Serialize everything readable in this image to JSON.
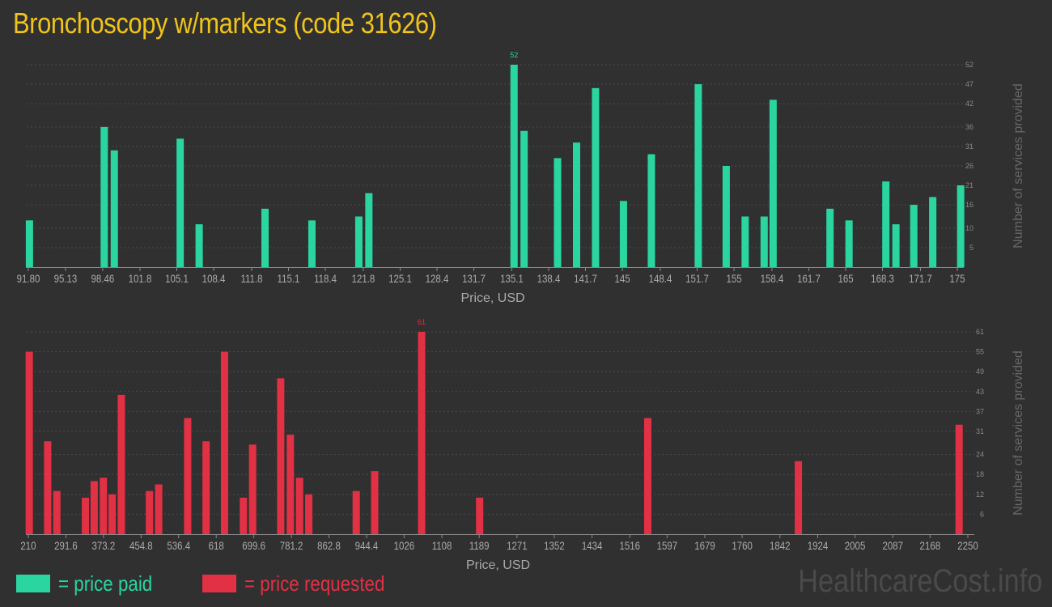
{
  "title": "Bronchoscopy w/markers (code 31626)",
  "colors": {
    "paid": "#2ad5a0",
    "requested": "#e23045",
    "title": "#f0c419",
    "axis": "#999999",
    "grid": "#4a4a4a",
    "text": "#aaaaaa"
  },
  "legend": {
    "paid": "= price paid",
    "requested": "= price requested"
  },
  "watermark": "HealthcareCost.info",
  "chart_data": [
    {
      "type": "bar",
      "series_name": "price paid",
      "xlabel": "Price, USD",
      "ylabel": "Number of services provided",
      "xlim": [
        91.8,
        175
      ],
      "ylim": [
        0,
        52
      ],
      "xticks": [
        "91.80",
        "95.13",
        "98.46",
        "101.8",
        "105.1",
        "108.4",
        "111.8",
        "115.1",
        "118.4",
        "121.8",
        "125.1",
        "128.4",
        "131.7",
        "135.1",
        "138.4",
        "141.7",
        "145",
        "148.4",
        "151.7",
        "155",
        "158.4",
        "161.7",
        "165",
        "168.3",
        "171.7",
        "175"
      ],
      "xtick_values": [
        91.8,
        95.13,
        98.46,
        101.8,
        105.1,
        108.4,
        111.8,
        115.1,
        118.4,
        121.8,
        125.1,
        128.4,
        131.7,
        135.1,
        138.4,
        141.7,
        145,
        148.4,
        151.7,
        155,
        158.4,
        161.7,
        165,
        168.3,
        171.7,
        175
      ],
      "yticks": [
        5,
        10,
        16,
        21,
        26,
        31,
        36,
        42,
        47,
        52
      ],
      "max_label": "52",
      "bars": [
        {
          "x": 91.9,
          "y": 12
        },
        {
          "x": 98.6,
          "y": 36
        },
        {
          "x": 99.5,
          "y": 30
        },
        {
          "x": 105.4,
          "y": 33
        },
        {
          "x": 107.1,
          "y": 11
        },
        {
          "x": 113.0,
          "y": 15
        },
        {
          "x": 117.2,
          "y": 12
        },
        {
          "x": 121.4,
          "y": 13
        },
        {
          "x": 122.3,
          "y": 19
        },
        {
          "x": 135.3,
          "y": 52
        },
        {
          "x": 136.2,
          "y": 35
        },
        {
          "x": 139.2,
          "y": 28
        },
        {
          "x": 140.9,
          "y": 32
        },
        {
          "x": 142.6,
          "y": 46
        },
        {
          "x": 145.1,
          "y": 17
        },
        {
          "x": 147.6,
          "y": 29
        },
        {
          "x": 151.8,
          "y": 47
        },
        {
          "x": 154.3,
          "y": 26
        },
        {
          "x": 156.0,
          "y": 13
        },
        {
          "x": 157.7,
          "y": 13
        },
        {
          "x": 158.5,
          "y": 43
        },
        {
          "x": 163.6,
          "y": 15
        },
        {
          "x": 165.3,
          "y": 12
        },
        {
          "x": 168.6,
          "y": 22
        },
        {
          "x": 169.5,
          "y": 11
        },
        {
          "x": 171.1,
          "y": 16
        },
        {
          "x": 172.8,
          "y": 18
        },
        {
          "x": 175.3,
          "y": 21
        }
      ]
    },
    {
      "type": "bar",
      "series_name": "price requested",
      "xlabel": "Price, USD",
      "ylabel": "Number of services provided",
      "xlim": [
        210,
        2250
      ],
      "ylim": [
        0,
        61
      ],
      "xticks": [
        "210",
        "291.6",
        "373.2",
        "454.8",
        "536.4",
        "618",
        "699.6",
        "781.2",
        "862.8",
        "944.4",
        "1026",
        "1108",
        "1189",
        "1271",
        "1352",
        "1434",
        "1516",
        "1597",
        "1679",
        "1760",
        "1842",
        "1924",
        "2005",
        "2087",
        "2168",
        "2250"
      ],
      "xtick_values": [
        210,
        291.6,
        373.2,
        454.8,
        536.4,
        618,
        699.6,
        781.2,
        862.8,
        944.4,
        1026,
        1108,
        1189,
        1271,
        1352,
        1434,
        1516,
        1597,
        1679,
        1760,
        1842,
        1924,
        2005,
        2087,
        2168,
        2250
      ],
      "yticks": [
        6,
        12,
        18,
        24,
        31,
        37,
        43,
        49,
        55,
        61
      ],
      "max_label": "61",
      "bars": [
        {
          "x": 212,
          "y": 55
        },
        {
          "x": 252,
          "y": 28
        },
        {
          "x": 272,
          "y": 13
        },
        {
          "x": 334,
          "y": 11
        },
        {
          "x": 353,
          "y": 16
        },
        {
          "x": 373,
          "y": 17
        },
        {
          "x": 392,
          "y": 12
        },
        {
          "x": 412,
          "y": 42
        },
        {
          "x": 473,
          "y": 13
        },
        {
          "x": 493,
          "y": 15
        },
        {
          "x": 556,
          "y": 35
        },
        {
          "x": 596,
          "y": 28
        },
        {
          "x": 636,
          "y": 55
        },
        {
          "x": 677,
          "y": 11
        },
        {
          "x": 697,
          "y": 27
        },
        {
          "x": 758,
          "y": 47
        },
        {
          "x": 779,
          "y": 30
        },
        {
          "x": 799,
          "y": 17
        },
        {
          "x": 819,
          "y": 12
        },
        {
          "x": 922,
          "y": 13
        },
        {
          "x": 962,
          "y": 19
        },
        {
          "x": 1064,
          "y": 61
        },
        {
          "x": 1190,
          "y": 11
        },
        {
          "x": 1555,
          "y": 35
        },
        {
          "x": 1882,
          "y": 22
        },
        {
          "x": 2231,
          "y": 33
        }
      ]
    }
  ]
}
